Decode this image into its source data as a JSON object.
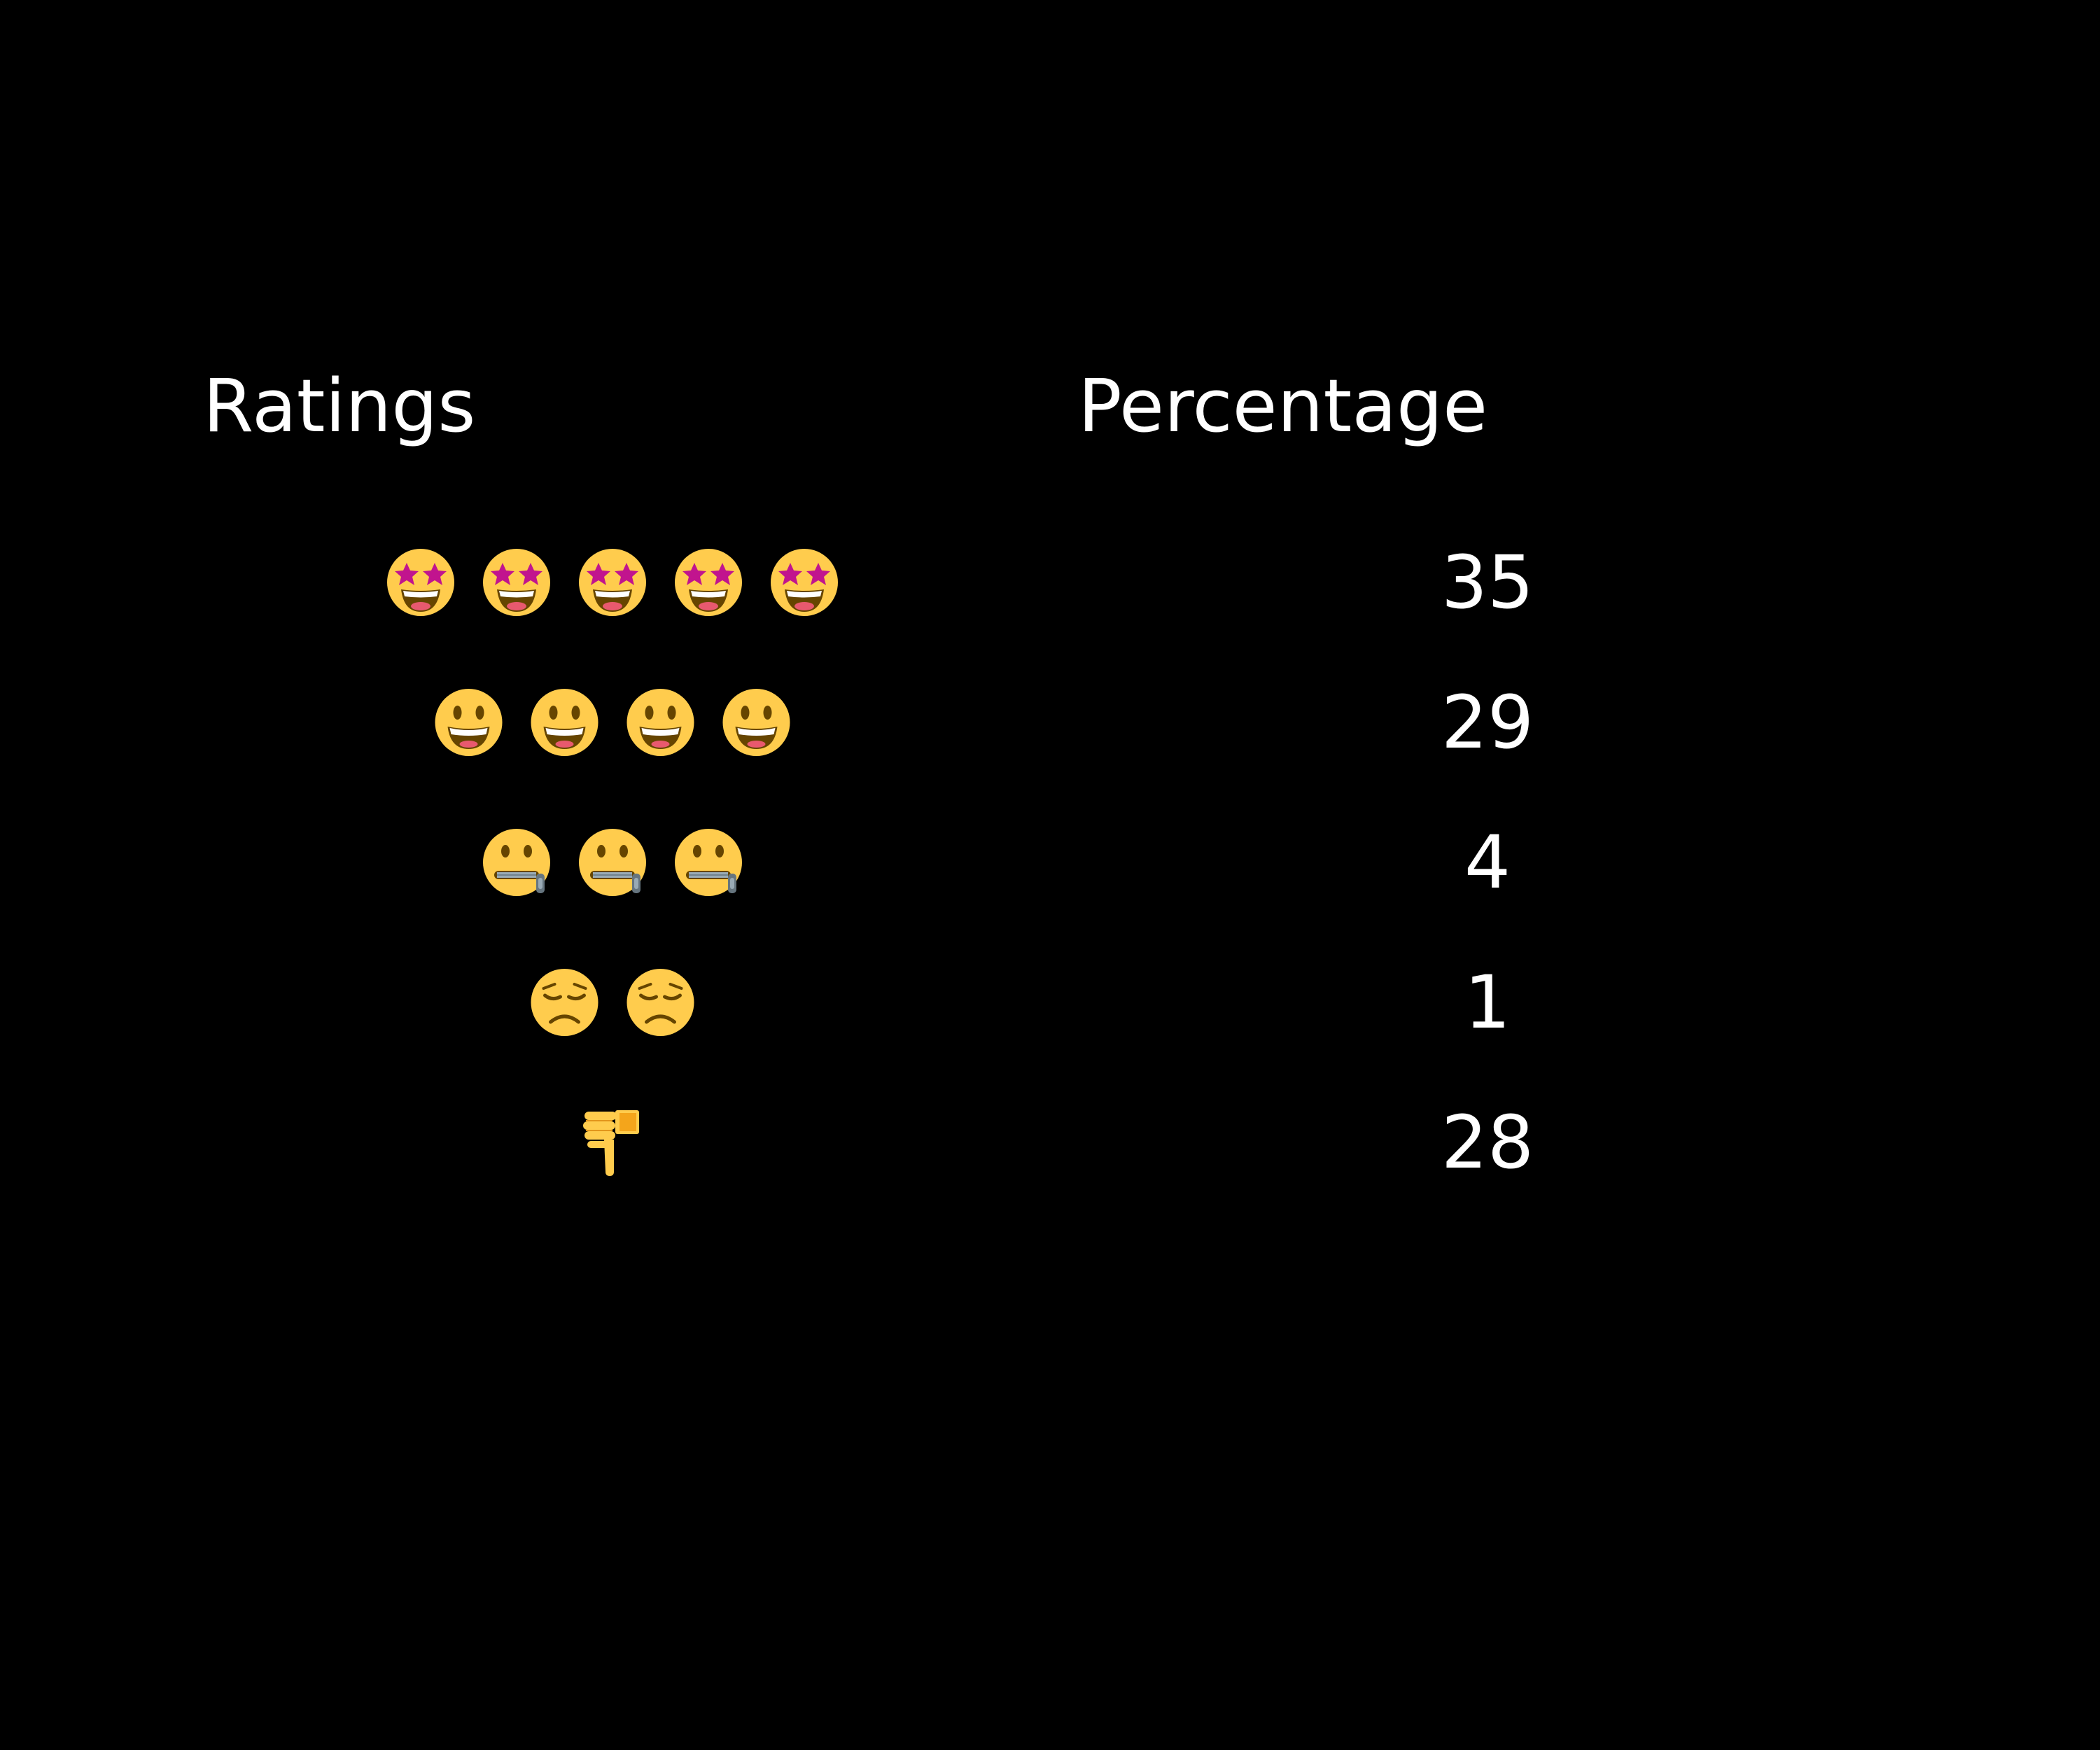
{
  "chart_data": {
    "type": "table",
    "columns": [
      "Ratings",
      "Percentage"
    ],
    "rows": [
      {
        "icon": "star-struck-face-icon",
        "icon_count": 5,
        "percentage": 35
      },
      {
        "icon": "grinning-face-icon",
        "icon_count": 4,
        "percentage": 29
      },
      {
        "icon": "zipper-mouth-face-icon",
        "icon_count": 3,
        "percentage": 4
      },
      {
        "icon": "pensive-face-icon",
        "icon_count": 2,
        "percentage": 1
      },
      {
        "icon": "thumbs-down-icon",
        "icon_count": 1,
        "percentage": 28
      }
    ]
  },
  "colors": {
    "background": "#000000",
    "text": "#ffffff",
    "face": "#FFCC4D",
    "star": "#C1148E",
    "mouth": "#664500"
  }
}
